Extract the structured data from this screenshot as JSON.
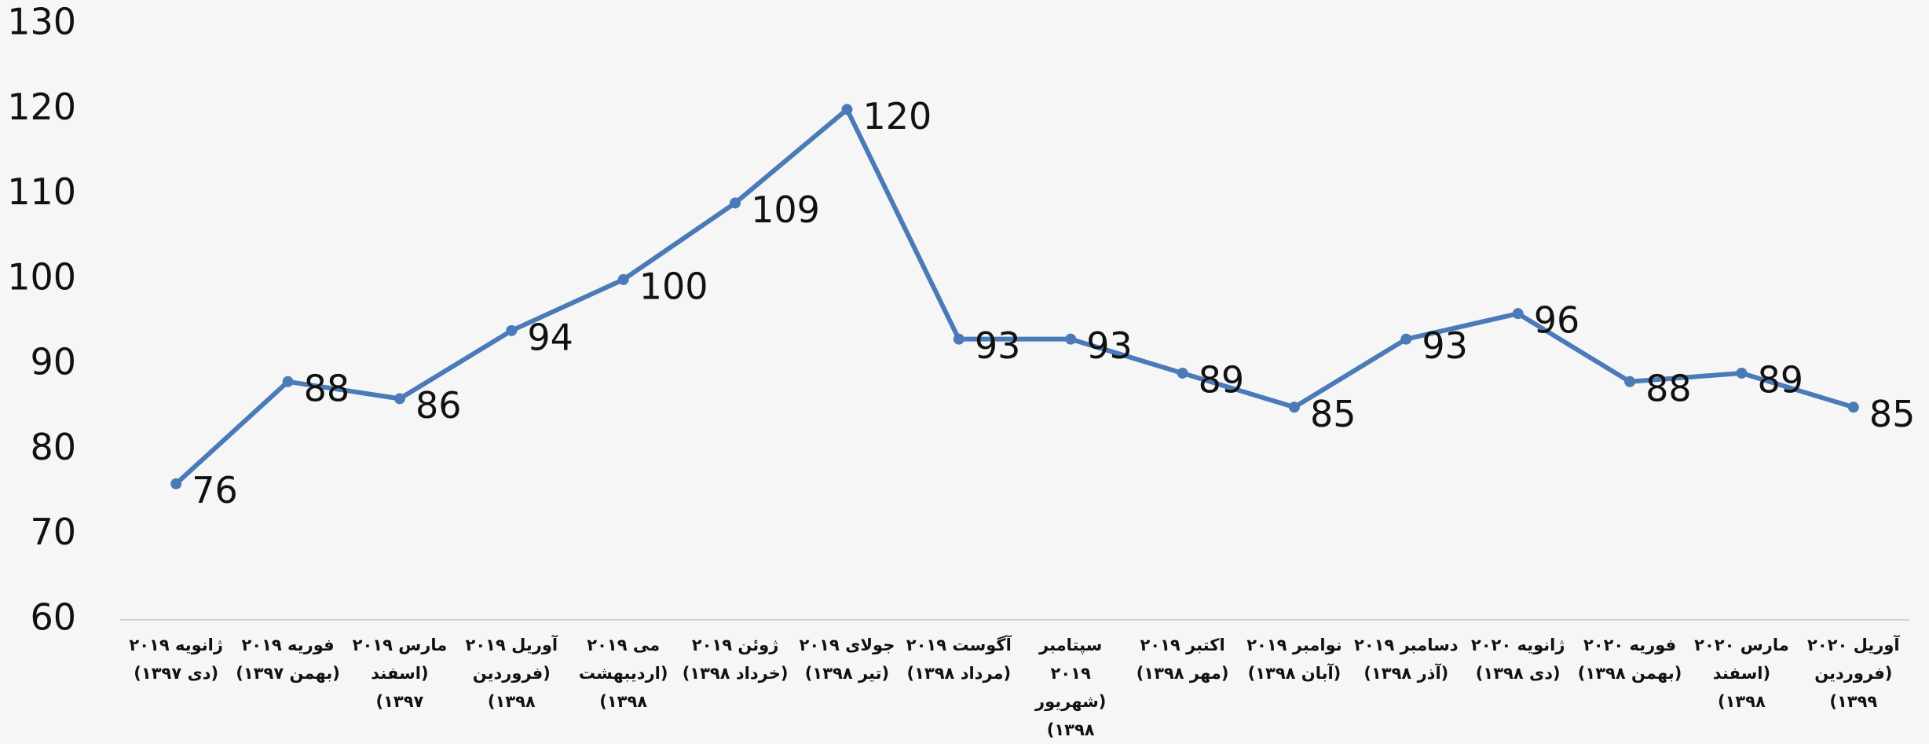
{
  "chart_data": {
    "type": "line",
    "categories": [
      "ژانویه ۲۰۱۹ (دی ۱۳۹۷)",
      "فوریه ۲۰۱۹ (بهمن ۱۳۹۷)",
      "مارس ۲۰۱۹ (اسفند ۱۳۹۷)",
      "آوریل ۲۰۱۹ (فروردین ۱۳۹۸)",
      "می ۲۰۱۹ (اردیبهشت ۱۳۹۸)",
      "ژوئن ۲۰۱۹ (خرداد ۱۳۹۸)",
      "جولای ۲۰۱۹ (تیر ۱۳۹۸)",
      "آگوست ۲۰۱۹ (مرداد ۱۳۹۸)",
      "سپتامبر ۲۰۱۹ (شهریور ۱۳۹۸)",
      "اکتبر ۲۰۱۹ (مهر ۱۳۹۸)",
      "نوامبر ۲۰۱۹ (آبان ۱۳۹۸)",
      "دسامبر ۲۰۱۹ (آذر ۱۳۹۸)",
      "ژانویه ۲۰۲۰ (دی ۱۳۹۸)",
      "فوریه ۲۰۲۰ (بهمن ۱۳۹۸)",
      "مارس ۲۰۲۰ (اسفند ۱۳۹۸)",
      "آوریل ۲۰۲۰ (فروردین ۱۳۹۹)"
    ],
    "values": [
      76,
      88,
      86,
      94,
      100,
      109,
      120,
      93,
      93,
      89,
      85,
      93,
      96,
      88,
      89,
      85
    ],
    "color": "#4a7ab8",
    "ylim": [
      60,
      130
    ],
    "yticks": [
      60,
      70,
      80,
      90,
      100,
      110,
      120,
      130
    ],
    "grid": false
  }
}
